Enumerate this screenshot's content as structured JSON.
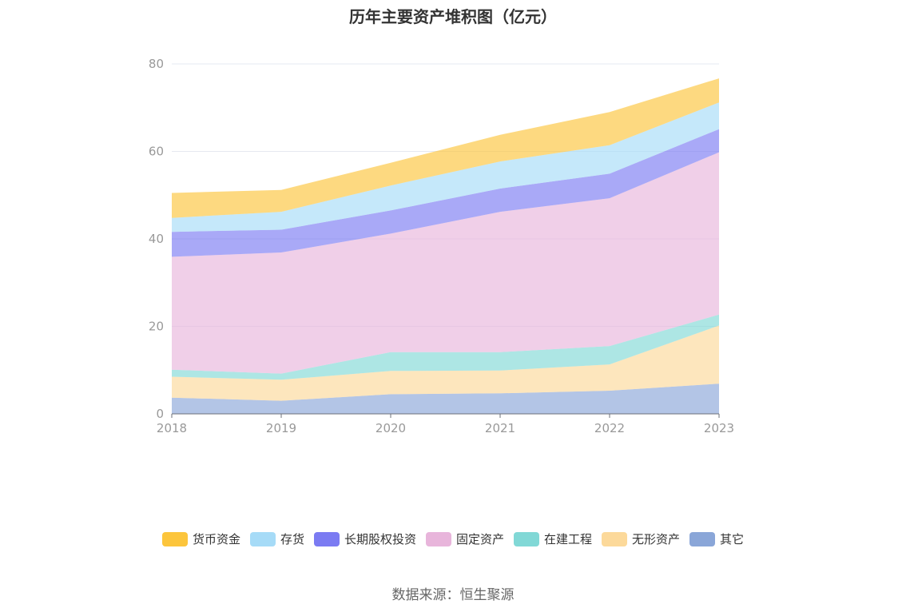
{
  "title": "历年主要资产堆积图（亿元）",
  "source": "数据来源：恒生聚源",
  "chart_data": {
    "type": "area",
    "stacked": true,
    "title": "历年主要资产堆积图（亿元）",
    "xlabel": "",
    "ylabel": "",
    "categories": [
      "2018",
      "2019",
      "2020",
      "2021",
      "2022",
      "2023"
    ],
    "y_ticks": [
      "0",
      "20",
      "40",
      "60",
      "80"
    ],
    "ylim": [
      0,
      80
    ],
    "grid": true,
    "legend_position": "bottom",
    "series": [
      {
        "name": "其它",
        "color": "#8aa6d8",
        "values": [
          3.7,
          3.0,
          4.5,
          4.7,
          5.3,
          6.9
        ]
      },
      {
        "name": "无形资产",
        "color": "#fcd99a",
        "values": [
          4.8,
          4.8,
          5.3,
          5.2,
          6.0,
          13.3
        ]
      },
      {
        "name": "在建工程",
        "color": "#81d8d6",
        "values": [
          1.6,
          1.4,
          4.3,
          4.2,
          4.2,
          2.5
        ]
      },
      {
        "name": "固定资产",
        "color": "#e8b5db",
        "values": [
          25.8,
          27.7,
          27.1,
          32.1,
          33.8,
          37.1
        ]
      },
      {
        "name": "长期股权投资",
        "color": "#7b7bf2",
        "values": [
          5.7,
          5.2,
          5.3,
          5.3,
          5.6,
          5.3
        ]
      },
      {
        "name": "存货",
        "color": "#a6dbf7",
        "values": [
          3.2,
          4.1,
          5.7,
          6.2,
          6.5,
          6.1
        ]
      },
      {
        "name": "货币资金",
        "color": "#fcc53c",
        "values": [
          5.7,
          5.0,
          5.2,
          6.1,
          7.6,
          5.5
        ]
      }
    ],
    "legend_order": [
      "货币资金",
      "存货",
      "长期股权投资",
      "固定资产",
      "在建工程",
      "无形资产",
      "其它"
    ]
  }
}
